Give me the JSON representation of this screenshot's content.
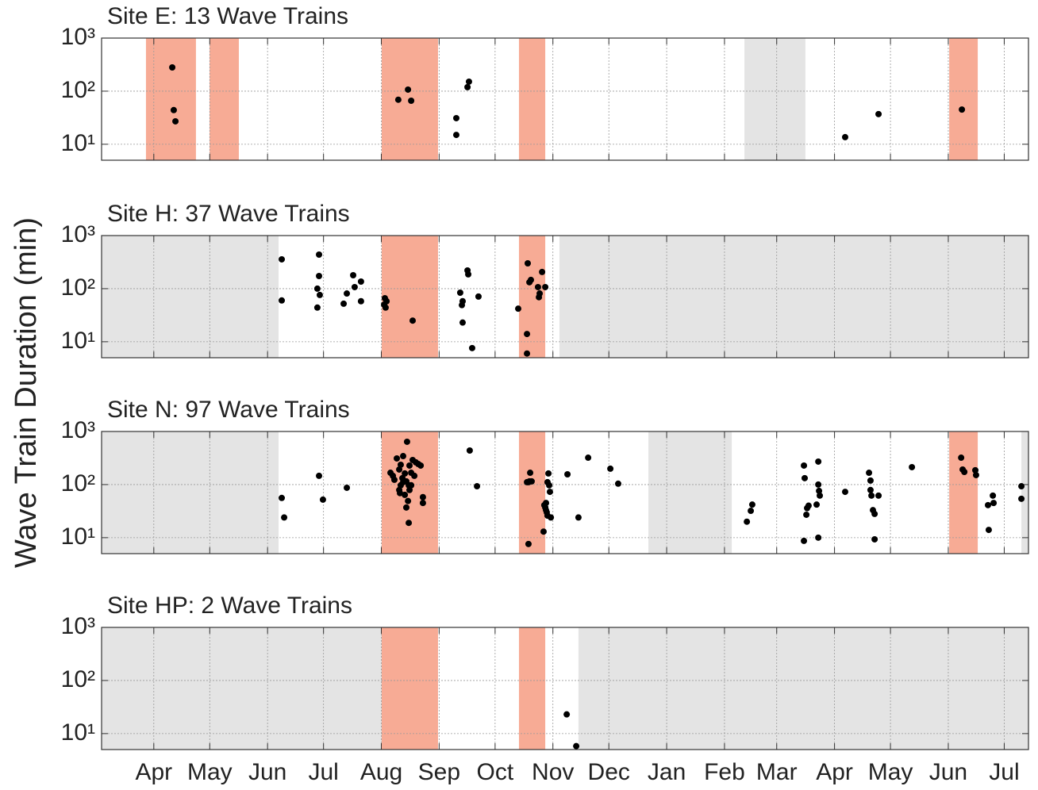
{
  "ylabel": "Wave Train Duration (min)",
  "chart_data": [
    {
      "type": "scatter",
      "title": "Site E: 13 Wave Trains",
      "log_y": true,
      "grid": true,
      "color": "#000000",
      "xlim": [
        0,
        497
      ],
      "ylim": [
        5,
        1000
      ],
      "xticks": [
        28,
        58,
        89,
        119,
        150,
        181,
        211,
        242,
        272,
        303,
        334,
        362,
        393,
        423,
        454,
        484
      ],
      "yticks": [
        {
          "value": 10,
          "label": "10¹"
        },
        {
          "value": 100,
          "label": "10²"
        },
        {
          "value": 1000,
          "label": "10³"
        }
      ],
      "shaded": [
        {
          "start": 23.8,
          "end": 50.6,
          "color": "#f7ab95"
        },
        {
          "start": 57.9,
          "end": 73.6,
          "color": "#f7ab95"
        },
        {
          "start": 150.2,
          "end": 180.4,
          "color": "#f7ab95"
        },
        {
          "start": 223.8,
          "end": 237.9,
          "color": "#f7ab95"
        },
        {
          "start": 344.7,
          "end": 377.4,
          "color": "#e4e4e4"
        },
        {
          "start": 454.5,
          "end": 469.8,
          "color": "#f7ab95"
        }
      ],
      "x": [
        37.9,
        38.7,
        39.6,
        159.1,
        164.3,
        166.0,
        190.2,
        190.2,
        196.2,
        197.0,
        398.7,
        416.6,
        461.3
      ],
      "y": [
        280,
        44,
        27,
        69,
        107,
        66,
        31,
        15,
        119,
        151,
        13.6,
        37,
        45
      ]
    },
    {
      "type": "scatter",
      "title": "Site H: 37 Wave Trains",
      "log_y": true,
      "grid": true,
      "color": "#000000",
      "xlim": [
        0,
        497
      ],
      "ylim": [
        5,
        1000
      ],
      "xticks": [
        28,
        58,
        89,
        119,
        150,
        181,
        211,
        242,
        272,
        303,
        334,
        362,
        393,
        423,
        454,
        484
      ],
      "yticks": [
        {
          "value": 10,
          "label": "10¹"
        },
        {
          "value": 100,
          "label": "10²"
        },
        {
          "value": 1000,
          "label": "10³"
        }
      ],
      "shaded": [
        {
          "start": 0,
          "end": 94.9,
          "color": "#e4e4e4"
        },
        {
          "start": 150.2,
          "end": 180.4,
          "color": "#f7ab95"
        },
        {
          "start": 223.8,
          "end": 237.9,
          "color": "#f7ab95"
        },
        {
          "start": 245.5,
          "end": 497,
          "color": "#e4e4e4"
        }
      ],
      "x": [
        96.6,
        96.6,
        116.6,
        116.6,
        115.7,
        117.0,
        115.7,
        129.8,
        131.5,
        134.9,
        135.7,
        139.1,
        139.1,
        151.9,
        151.5,
        152.3,
        166.8,
        192.3,
        193.6,
        193.2,
        193.6,
        196.2,
        196.6,
        198.7,
        202.1,
        223.4,
        228.5,
        229.4,
        230.2,
        228.1,
        228.1,
        234.0,
        234.9,
        236.2,
        237.9,
        234.5,
        152.8
      ],
      "y": [
        357,
        60,
        438,
        173,
        100,
        76,
        44,
        52,
        81,
        179,
        107,
        136,
        58,
        66,
        50,
        44,
        25,
        84,
        58,
        49,
        23,
        220,
        186,
        7.6,
        71,
        42,
        300,
        132,
        146,
        14,
        6,
        107,
        81,
        206,
        107,
        69,
        58
      ]
    },
    {
      "type": "scatter",
      "title": "Site N: 97 Wave Trains",
      "log_y": true,
      "grid": true,
      "color": "#000000",
      "xlim": [
        0,
        497
      ],
      "ylim": [
        5,
        1000
      ],
      "xticks": [
        28,
        58,
        89,
        119,
        150,
        181,
        211,
        242,
        272,
        303,
        334,
        362,
        393,
        423,
        454,
        484
      ],
      "yticks": [
        {
          "value": 10,
          "label": "10¹"
        },
        {
          "value": 100,
          "label": "10²"
        },
        {
          "value": 1000,
          "label": "10³"
        }
      ],
      "shaded": [
        {
          "start": 0,
          "end": 94.9,
          "color": "#e4e4e4"
        },
        {
          "start": 150.2,
          "end": 180.4,
          "color": "#f7ab95"
        },
        {
          "start": 223.8,
          "end": 237.9,
          "color": "#f7ab95"
        },
        {
          "start": 293.2,
          "end": 337.9,
          "color": "#e4e4e4"
        },
        {
          "start": 454.5,
          "end": 469.8,
          "color": "#f7ab95"
        },
        {
          "start": 493.2,
          "end": 497,
          "color": "#e4e4e4"
        }
      ],
      "x": [
        96.6,
        97.9,
        116.6,
        118.7,
        131.5,
        154.9,
        156.2,
        157.0,
        158.3,
        159.6,
        160.4,
        161.3,
        161.7,
        162.6,
        163.4,
        163.8,
        164.7,
        165.1,
        166.0,
        166.8,
        167.7,
        168.5,
        169.8,
        171.1,
        159.6,
        160.0,
        160.4,
        161.7,
        162.6,
        163.4,
        164.3,
        164.7,
        165.1,
        166.0,
        172.3,
        172.3,
        197.4,
        201.3,
        229.4,
        229.8,
        228.9,
        228.1,
        230.6,
        228.9,
        237.0,
        237.9,
        238.3,
        238.7,
        239.1,
        239.6,
        240.0,
        240.4,
        237.4,
        239.1,
        240.9,
        238.3,
        249.8,
        255.7,
        260.9,
        272.8,
        277.0,
        346.0,
        348.1,
        348.9,
        376.6,
        377.0,
        377.9,
        378.3,
        379.1,
        384.3,
        384.3,
        384.7,
        385.1,
        383.4,
        376.6,
        384.3,
        398.7,
        411.5,
        412.3,
        412.3,
        412.8,
        413.6,
        414.5,
        416.6,
        414.5,
        434.5,
        460.9,
        461.7,
        462.6,
        468.5,
        468.9,
        475.3,
        475.7,
        477.9,
        478.3,
        493.2,
        493.2
      ],
      "y": [
        56,
        24,
        146,
        52,
        87,
        167,
        146,
        123,
        311,
        192,
        236,
        132,
        344,
        162,
        115,
        640,
        97,
        228,
        167,
        290,
        146,
        262,
        244,
        228,
        79,
        69,
        97,
        111,
        64,
        37,
        49,
        19,
        79,
        97,
        58,
        45,
        438,
        93,
        115,
        167,
        111,
        111,
        115,
        7.6,
        13,
        37,
        45,
        30,
        111,
        162,
        97,
        73,
        41,
        26,
        24,
        33,
        156,
        24,
        321,
        199,
        104,
        20,
        32,
        42,
        228,
        132,
        27,
        36,
        40,
        271,
        100,
        76,
        62,
        42,
        8.7,
        10,
        73,
        167,
        119,
        79,
        62,
        33,
        28,
        62,
        9.3,
        213,
        321,
        192,
        173,
        186,
        151,
        41,
        14,
        62,
        45,
        93,
        54
      ]
    },
    {
      "type": "scatter",
      "title": "Site HP: 2 Wave Trains",
      "log_y": true,
      "grid": true,
      "color": "#000000",
      "xlim": [
        0,
        497
      ],
      "ylim": [
        5,
        1000
      ],
      "xticks": [
        {
          "value": 28,
          "label": "Apr"
        },
        {
          "value": 58,
          "label": "May"
        },
        {
          "value": 89,
          "label": "Jun"
        },
        {
          "value": 119,
          "label": "Jul"
        },
        {
          "value": 150,
          "label": "Aug"
        },
        {
          "value": 181,
          "label": "Sep"
        },
        {
          "value": 211,
          "label": "Oct"
        },
        {
          "value": 242,
          "label": "Nov"
        },
        {
          "value": 272,
          "label": "Dec"
        },
        {
          "value": 303,
          "label": "Jan"
        },
        {
          "value": 334,
          "label": "Feb"
        },
        {
          "value": 362,
          "label": "Mar"
        },
        {
          "value": 393,
          "label": "Apr"
        },
        {
          "value": 423,
          "label": "May"
        },
        {
          "value": 454,
          "label": "Jun"
        },
        {
          "value": 484,
          "label": "Jul"
        }
      ],
      "yticks": [
        {
          "value": 10,
          "label": "10¹"
        },
        {
          "value": 100,
          "label": "10²"
        },
        {
          "value": 1000,
          "label": "10³"
        }
      ],
      "shaded": [
        {
          "start": 0,
          "end": 150.2,
          "color": "#e4e4e4"
        },
        {
          "start": 150.2,
          "end": 180.4,
          "color": "#f7ab95"
        },
        {
          "start": 223.8,
          "end": 237.9,
          "color": "#f7ab95"
        },
        {
          "start": 255.7,
          "end": 497,
          "color": "#e4e4e4"
        }
      ],
      "x": [
        249.4,
        254.5
      ],
      "y": [
        23,
        5.8
      ]
    }
  ]
}
